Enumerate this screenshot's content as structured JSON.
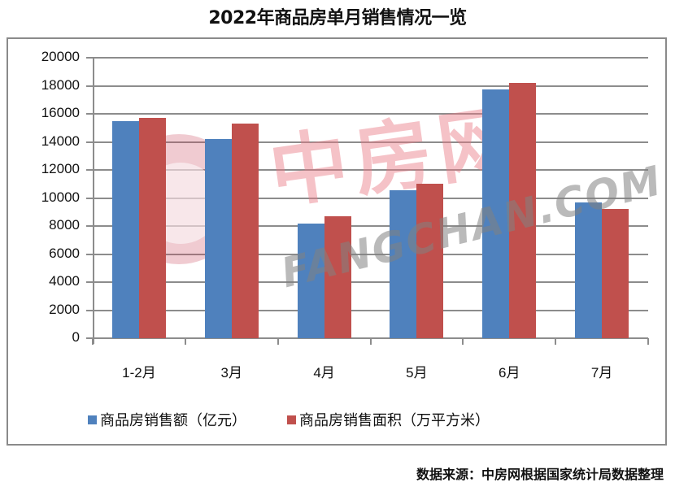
{
  "title": "2022年商品房单月销售情况一览",
  "source": "数据来源：中房网根据国家统计局数据整理",
  "watermark": {
    "cn": "中房网",
    "en": "FANGCHAN.COM"
  },
  "colors": {
    "series1": "#4f81bd",
    "series2": "#c0504d",
    "grid": "#8c8c8c"
  },
  "y_ticks": [
    "20000",
    "18000",
    "16000",
    "14000",
    "12000",
    "10000",
    "8000",
    "6000",
    "4000",
    "2000",
    "0"
  ],
  "legend": [
    {
      "label": "商品房销售额（亿元）",
      "color": "#4f81bd"
    },
    {
      "label": "商品房销售面积（万平方米）",
      "color": "#c0504d"
    }
  ],
  "chart_data": {
    "type": "bar",
    "title": "2022年商品房单月销售情况一览",
    "categories": [
      "1-2月",
      "3月",
      "4月",
      "5月",
      "6月",
      "7月"
    ],
    "series": [
      {
        "name": "商品房销售额（亿元）",
        "color": "#4f81bd",
        "values": [
          15459,
          14194,
          8160,
          10523,
          17738,
          9674
        ]
      },
      {
        "name": "商品房销售面积（万平方米）",
        "color": "#c0504d",
        "values": [
          15703,
          15321,
          8723,
          11024,
          18213,
          9239
        ]
      }
    ],
    "xlabel": "",
    "ylabel": "",
    "ylim": [
      0,
      20000
    ],
    "yticks": [
      0,
      2000,
      4000,
      6000,
      8000,
      10000,
      12000,
      14000,
      16000,
      18000,
      20000
    ],
    "grid": true,
    "legend_position": "bottom",
    "source": "数据来源：中房网根据国家统计局数据整理"
  }
}
